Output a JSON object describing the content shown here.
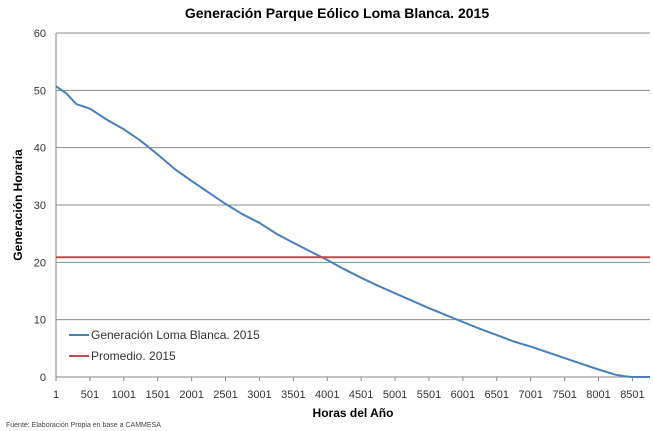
{
  "chart_data": {
    "type": "line",
    "title": "Generación Parque Eólico Loma Blanca. 2015",
    "xlabel": "Horas del Año",
    "ylabel": "Generación Horaria",
    "xlim": [
      1,
      8760
    ],
    "ylim": [
      0,
      60
    ],
    "x_ticks": [
      1,
      501,
      1001,
      1501,
      2001,
      2501,
      3001,
      3501,
      4001,
      4501,
      5001,
      5501,
      6001,
      6501,
      7001,
      7501,
      8001,
      8501
    ],
    "y_ticks": [
      0,
      10,
      20,
      30,
      40,
      50,
      60
    ],
    "grid": true,
    "legend_position": "bottom-left",
    "series": [
      {
        "name": "Generación Loma Blanca. 2015",
        "color": "#4a7ebb",
        "x": [
          1,
          150,
          300,
          501,
          750,
          1001,
          1250,
          1501,
          1750,
          2001,
          2250,
          2501,
          2750,
          3001,
          3250,
          3501,
          3750,
          4001,
          4250,
          4501,
          4750,
          5001,
          5250,
          5501,
          5750,
          6001,
          6250,
          6501,
          6750,
          7001,
          7250,
          7501,
          7750,
          8001,
          8250,
          8400,
          8500,
          8600,
          8760
        ],
        "y": [
          50.7,
          49.5,
          47.6,
          46.8,
          44.9,
          43.2,
          41.2,
          38.8,
          36.3,
          34.2,
          32.2,
          30.2,
          28.4,
          26.9,
          25.0,
          23.4,
          21.9,
          20.4,
          18.8,
          17.3,
          15.9,
          14.6,
          13.3,
          12.0,
          10.8,
          9.6,
          8.4,
          7.3,
          6.2,
          5.3,
          4.3,
          3.3,
          2.3,
          1.3,
          0.4,
          0.1,
          0.0,
          0.0,
          0.0
        ]
      },
      {
        "name": "Promedio. 2015",
        "color": "#be4b48",
        "x": [
          1,
          8760
        ],
        "y": [
          20.9,
          20.9
        ]
      }
    ],
    "source": "Fuente: Elaboración Propia en base a CAMMESA"
  }
}
